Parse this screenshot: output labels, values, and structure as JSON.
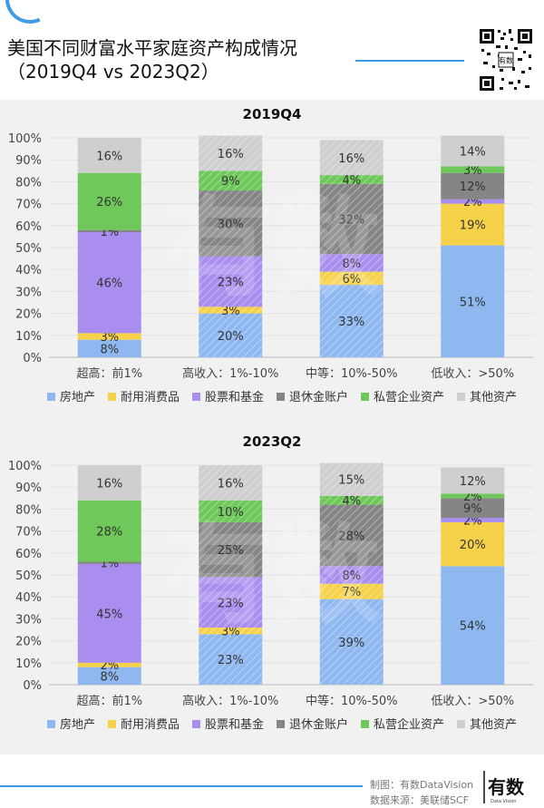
{
  "header": {
    "title_line1": "美国不同财富水平家庭资产构成情况",
    "title_line2": "（2019Q4 vs 2023Q2）"
  },
  "colors": {
    "real_estate": "#8fb8f1",
    "durables": "#f6d24a",
    "stocks": "#a98ef0",
    "retirement": "#858585",
    "business": "#6ec85a",
    "other": "#cfcfcf",
    "accent": "#3f9be6"
  },
  "watermark": "有数 DataVision",
  "chart_data": [
    {
      "type": "bar",
      "stacked": true,
      "title": "2019Q4",
      "categories": [
        "超高：前1%",
        "高收入：1%-10%",
        "中等：10%-50%",
        "低收入：>50%"
      ],
      "ylim": [
        0,
        100
      ],
      "yticks": [
        "0%",
        "10%",
        "20%",
        "30%",
        "40%",
        "50%",
        "60%",
        "70%",
        "80%",
        "90%",
        "100%"
      ],
      "legend_position": "bottom",
      "series": [
        {
          "name": "房地产",
          "color_key": "real_estate",
          "values": [
            8,
            20,
            33,
            51
          ],
          "labels": [
            "8%",
            "20%",
            "33%",
            "51%"
          ]
        },
        {
          "name": "耐用消费品",
          "color_key": "durables",
          "values": [
            3,
            3,
            6,
            19
          ],
          "labels": [
            "3%",
            "3%",
            "6%",
            "19%"
          ]
        },
        {
          "name": "股票和基金",
          "color_key": "stocks",
          "values": [
            46,
            23,
            8,
            2
          ],
          "labels": [
            "46%",
            "23%",
            "8%",
            "2%"
          ]
        },
        {
          "name": "退休金账户",
          "color_key": "retirement",
          "values": [
            1,
            30,
            32,
            12
          ],
          "labels": [
            "1%",
            "30%",
            "32%",
            "12%"
          ]
        },
        {
          "name": "私营企业资产",
          "color_key": "business",
          "values": [
            26,
            9,
            4,
            3
          ],
          "labels": [
            "26%",
            "9%",
            "4%",
            "3%"
          ]
        },
        {
          "name": "其他资产",
          "color_key": "other",
          "values": [
            16,
            16,
            16,
            14
          ],
          "labels": [
            "16%",
            "16%",
            "16%",
            "14%"
          ]
        }
      ]
    },
    {
      "type": "bar",
      "stacked": true,
      "title": "2023Q2",
      "categories": [
        "超高：前1%",
        "高收入：1%-10%",
        "中等：10%-50%",
        "低收入：>50%"
      ],
      "ylim": [
        0,
        100
      ],
      "yticks": [
        "0%",
        "10%",
        "20%",
        "30%",
        "40%",
        "50%",
        "60%",
        "70%",
        "80%",
        "90%",
        "100%"
      ],
      "legend_position": "bottom",
      "series": [
        {
          "name": "房地产",
          "color_key": "real_estate",
          "values": [
            8,
            23,
            39,
            54
          ],
          "labels": [
            "8%",
            "23%",
            "39%",
            "54%"
          ]
        },
        {
          "name": "耐用消费品",
          "color_key": "durables",
          "values": [
            2,
            3,
            7,
            20
          ],
          "labels": [
            "2%",
            "3%",
            "7%",
            "20%"
          ]
        },
        {
          "name": "股票和基金",
          "color_key": "stocks",
          "values": [
            45,
            23,
            8,
            2
          ],
          "labels": [
            "45%",
            "23%",
            "8%",
            "2%"
          ]
        },
        {
          "name": "退休金账户",
          "color_key": "retirement",
          "values": [
            1,
            25,
            28,
            9
          ],
          "labels": [
            "1%",
            "25%",
            "28%",
            "9%"
          ]
        },
        {
          "name": "私营企业资产",
          "color_key": "business",
          "values": [
            28,
            10,
            4,
            2
          ],
          "labels": [
            "28%",
            "10%",
            "4%",
            "2%"
          ]
        },
        {
          "name": "其他资产",
          "color_key": "other",
          "values": [
            16,
            16,
            15,
            12
          ],
          "labels": [
            "16%",
            "16%",
            "15%",
            "12%"
          ]
        }
      ]
    }
  ],
  "footer": {
    "credit_line1": "制图：有数DataVision",
    "credit_line2": "数据来源：美联储SCF",
    "logo_text": "有数",
    "logo_sub": "Data Vision"
  }
}
